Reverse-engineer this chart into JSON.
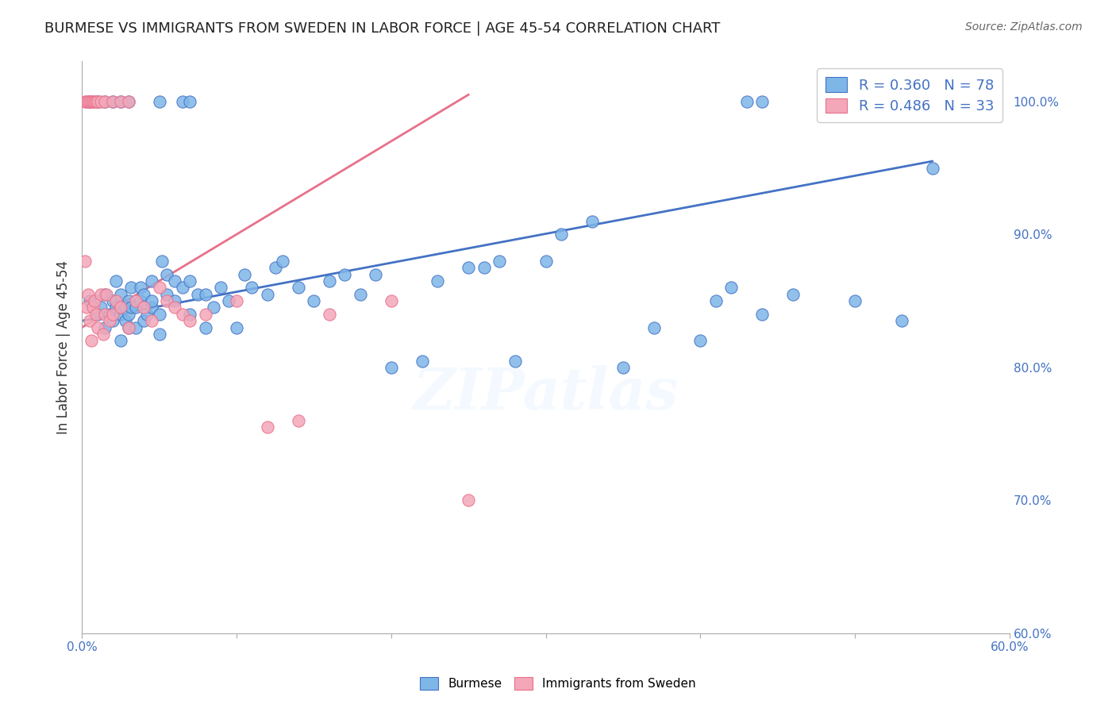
{
  "title": "BURMESE VS IMMIGRANTS FROM SWEDEN IN LABOR FORCE | AGE 45-54 CORRELATION CHART",
  "source": "Source: ZipAtlas.com",
  "ylabel": "In Labor Force | Age 45-54",
  "ylabel_ticks": [
    60.0,
    70.0,
    80.0,
    90.0,
    100.0
  ],
  "xticks": [
    0.0,
    10.0,
    20.0,
    30.0,
    40.0,
    50.0,
    60.0
  ],
  "xlim": [
    0.0,
    60.0
  ],
  "ylim": [
    60.0,
    103.0
  ],
  "blue_R": 0.36,
  "blue_N": 78,
  "pink_R": 0.486,
  "pink_N": 33,
  "blue_color": "#7EB6E8",
  "pink_color": "#F4A7B9",
  "blue_line_color": "#4472C4",
  "pink_line_color": "#E8708A",
  "watermark": "ZIPatlas",
  "blue_scatter_x": [
    0.5,
    1.0,
    1.2,
    1.5,
    1.5,
    1.8,
    2.0,
    2.0,
    2.2,
    2.2,
    2.5,
    2.5,
    2.5,
    2.8,
    2.8,
    3.0,
    3.0,
    3.0,
    3.2,
    3.2,
    3.5,
    3.5,
    3.8,
    3.8,
    4.0,
    4.0,
    4.2,
    4.5,
    4.5,
    4.5,
    5.0,
    5.0,
    5.2,
    5.5,
    5.5,
    6.0,
    6.0,
    6.5,
    7.0,
    7.0,
    7.5,
    8.0,
    8.0,
    8.5,
    9.0,
    9.5,
    10.0,
    10.5,
    11.0,
    12.0,
    12.5,
    13.0,
    14.0,
    15.0,
    16.0,
    17.0,
    18.0,
    19.0,
    20.0,
    22.0,
    23.0,
    25.0,
    26.0,
    27.0,
    28.0,
    30.0,
    31.0,
    33.0,
    35.0,
    37.0,
    40.0,
    41.0,
    42.0,
    44.0,
    46.0,
    50.0,
    53.0,
    55.0
  ],
  "blue_scatter_y": [
    85.0,
    84.0,
    84.5,
    83.0,
    85.5,
    84.0,
    83.5,
    85.0,
    84.5,
    86.5,
    82.0,
    84.0,
    85.5,
    83.5,
    84.5,
    83.0,
    84.0,
    85.0,
    84.5,
    86.0,
    83.0,
    84.5,
    85.0,
    86.0,
    83.5,
    85.5,
    84.0,
    84.5,
    85.0,
    86.5,
    82.5,
    84.0,
    88.0,
    85.5,
    87.0,
    85.0,
    86.5,
    86.0,
    84.0,
    86.5,
    85.5,
    83.0,
    85.5,
    84.5,
    86.0,
    85.0,
    83.0,
    87.0,
    86.0,
    85.5,
    87.5,
    88.0,
    86.0,
    85.0,
    86.5,
    87.0,
    85.5,
    87.0,
    80.0,
    80.5,
    86.5,
    87.5,
    87.5,
    88.0,
    80.5,
    88.0,
    90.0,
    91.0,
    80.0,
    83.0,
    82.0,
    85.0,
    86.0,
    84.0,
    85.5,
    85.0,
    83.5,
    95.0
  ],
  "blue_scatter_top_x": [
    0.5,
    1.0,
    1.5,
    2.0,
    2.5,
    3.0,
    5.0,
    6.5,
    7.0,
    43.0,
    44.0
  ],
  "blue_scatter_top_y": [
    100.0,
    100.0,
    100.0,
    100.0,
    100.0,
    100.0,
    100.0,
    100.0,
    100.0,
    100.0,
    100.0
  ],
  "pink_scatter_x": [
    0.2,
    0.3,
    0.4,
    0.5,
    0.6,
    0.7,
    0.8,
    0.9,
    1.0,
    1.2,
    1.4,
    1.5,
    1.6,
    1.8,
    2.0,
    2.2,
    2.5,
    3.0,
    3.5,
    4.0,
    4.5,
    5.0,
    5.5,
    6.0,
    6.5,
    7.0,
    8.0,
    10.0,
    12.0,
    14.0,
    16.0,
    20.0,
    25.0
  ],
  "pink_scatter_top_x": [
    0.2,
    0.3,
    0.4,
    0.5,
    0.6,
    0.7,
    0.8,
    0.9,
    1.0,
    1.2,
    1.5,
    2.0,
    2.5,
    3.0
  ],
  "pink_scatter_top_y": [
    100.0,
    100.0,
    100.0,
    100.0,
    100.0,
    100.0,
    100.0,
    100.0,
    100.0,
    100.0,
    100.0,
    100.0,
    100.0,
    100.0
  ],
  "pink_scatter_y": [
    88.0,
    84.5,
    85.5,
    83.5,
    82.0,
    84.5,
    85.0,
    84.0,
    83.0,
    85.5,
    82.5,
    84.0,
    85.5,
    83.5,
    84.0,
    85.0,
    84.5,
    83.0,
    85.0,
    84.5,
    83.5,
    86.0,
    85.0,
    84.5,
    84.0,
    83.5,
    84.0,
    85.0,
    75.5,
    76.0,
    84.0,
    85.0,
    70.0
  ],
  "blue_trend_x": [
    0.0,
    55.0
  ],
  "blue_trend_y": [
    83.5,
    95.5
  ],
  "pink_trend_x": [
    0.0,
    25.0
  ],
  "pink_trend_y": [
    83.0,
    100.5
  ]
}
